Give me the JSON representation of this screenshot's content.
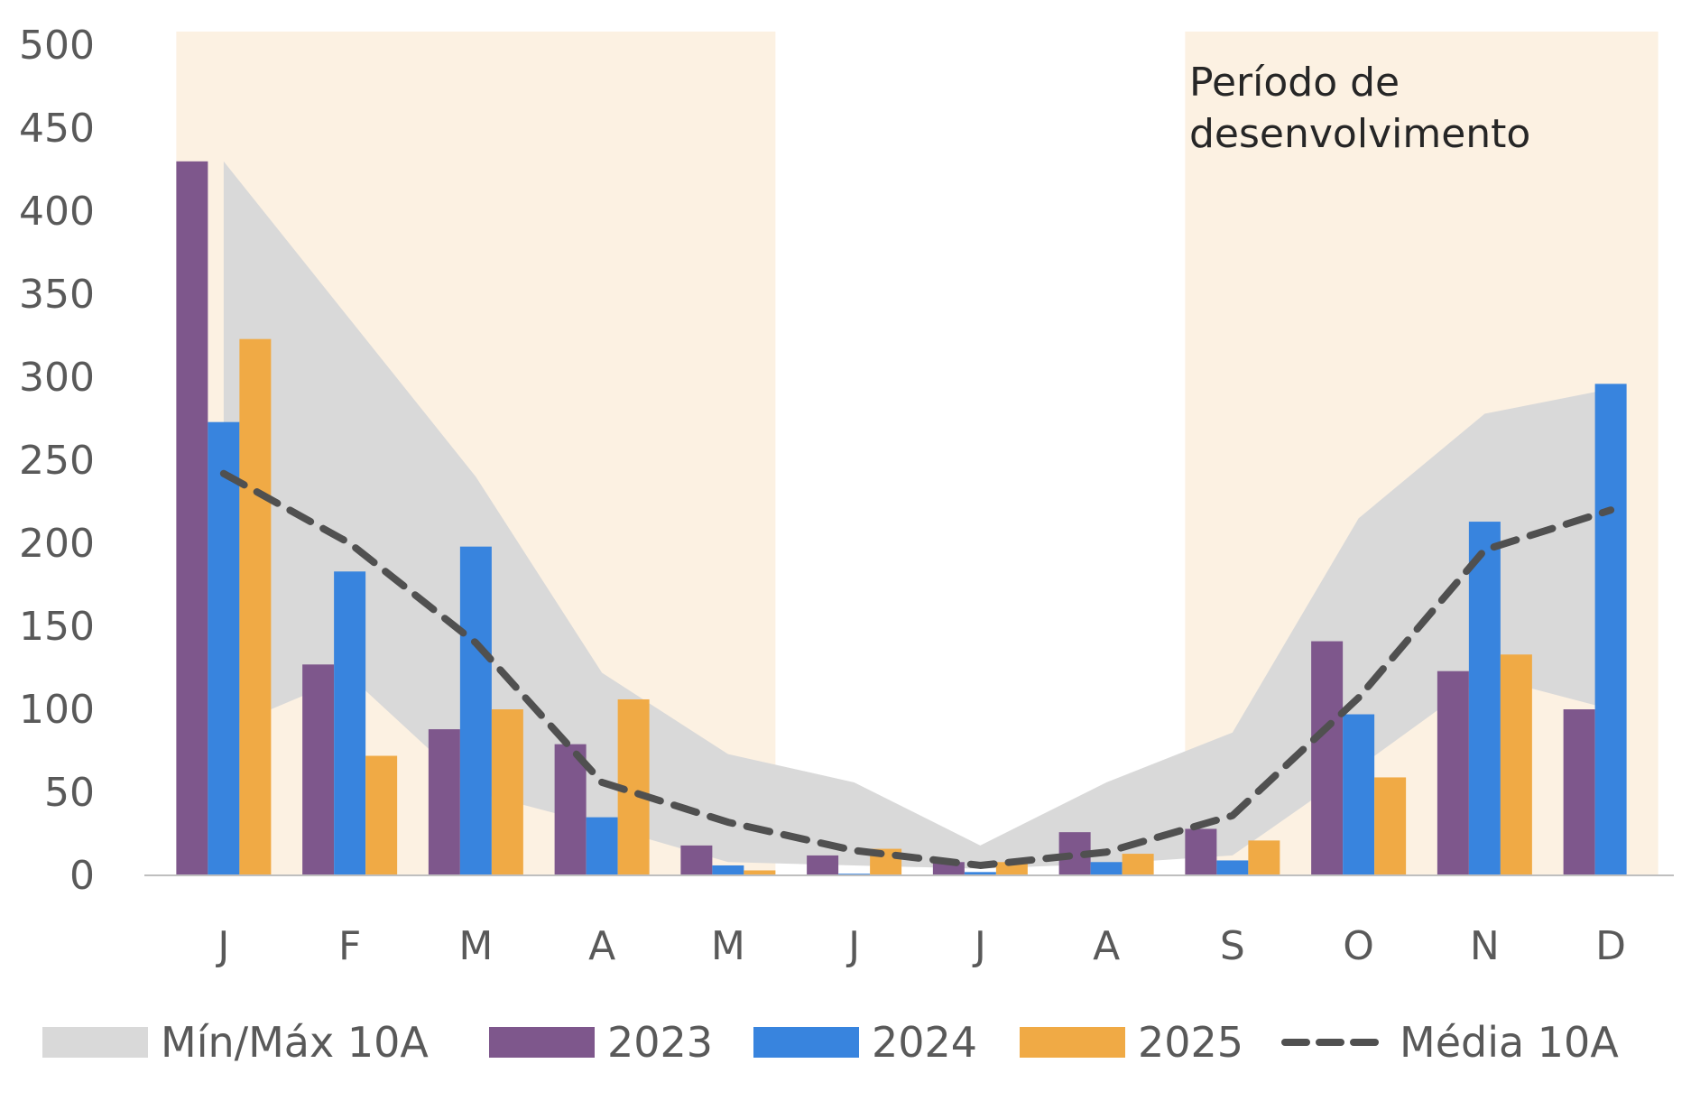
{
  "chart_data": {
    "type": "bar",
    "title": "",
    "xlabel": "",
    "ylabel": "",
    "categories": [
      "J",
      "F",
      "M",
      "A",
      "M",
      "J",
      "J",
      "A",
      "S",
      "O",
      "N",
      "D"
    ],
    "ylim": [
      0,
      500
    ],
    "yticks": [
      0,
      50,
      100,
      150,
      200,
      250,
      300,
      350,
      400,
      450,
      500
    ],
    "grid": false,
    "legend_position": "bottom",
    "bar_series": [
      {
        "name": "2023",
        "color": "#7e578c",
        "values": [
          430,
          127,
          88,
          79,
          18,
          12,
          8,
          26,
          28,
          141,
          123,
          100
        ]
      },
      {
        "name": "2024",
        "color": "#3884de",
        "values": [
          273,
          183,
          198,
          35,
          6,
          1,
          2,
          8,
          9,
          97,
          213,
          296
        ]
      },
      {
        "name": "2025",
        "color": "#f0aa45",
        "values": [
          323,
          72,
          100,
          106,
          3,
          16,
          8,
          13,
          21,
          59,
          133,
          null
        ]
      }
    ],
    "band": {
      "name": "Mín/Máx 10A",
      "color": "#d9d9d9",
      "min": [
        88,
        120,
        50,
        30,
        8,
        6,
        4,
        7,
        12,
        65,
        120,
        100
      ],
      "max": [
        430,
        335,
        240,
        122,
        73,
        56,
        18,
        56,
        86,
        215,
        278,
        293
      ]
    },
    "line": {
      "name": "Média 10A",
      "color": "#505050",
      "values": [
        242,
        200,
        140,
        56,
        32,
        15,
        6,
        14,
        36,
        107,
        196,
        220
      ]
    },
    "shaded_periods": [
      {
        "from": "J",
        "to": "M",
        "color": "#fcf1e2"
      },
      {
        "from": "S",
        "to": "D",
        "color": "#fcf1e2"
      }
    ],
    "annotation": [
      "Período de",
      "desenvolvimento"
    ]
  }
}
